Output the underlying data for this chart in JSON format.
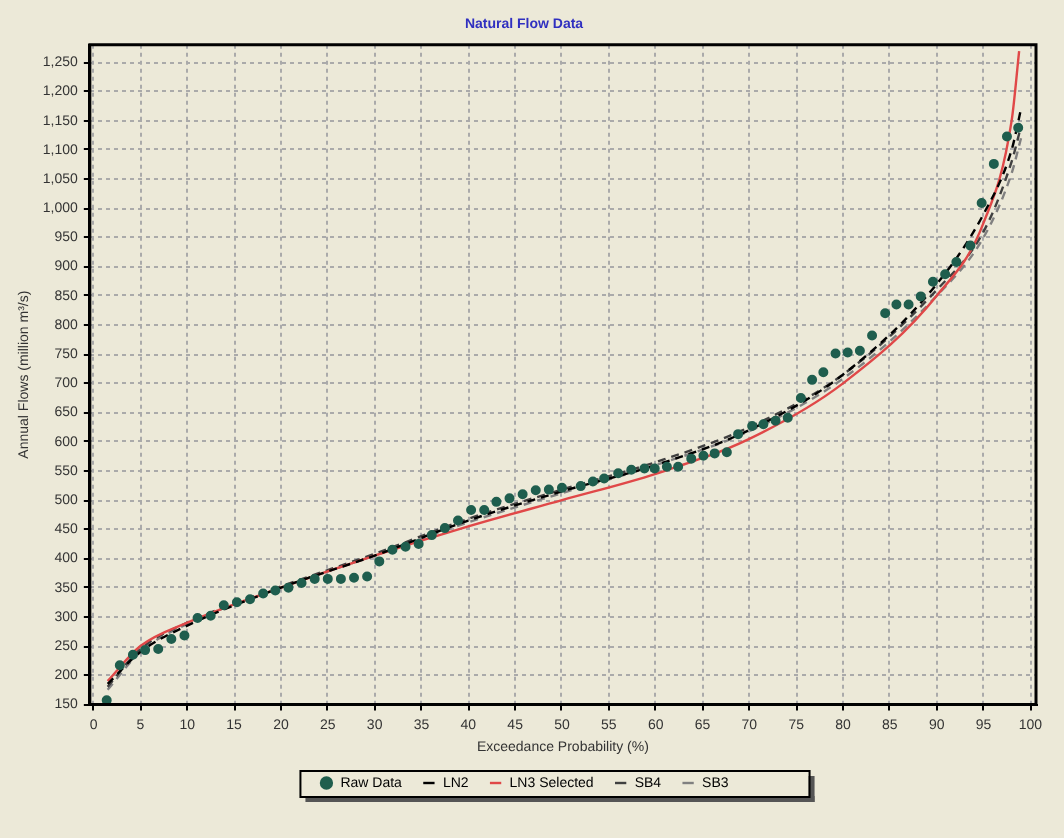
{
  "chart_data": {
    "type": "scatter",
    "title": "Natural Flow Data",
    "xlabel": "Exceedance Probability (%)",
    "ylabel": "Annual Flows (million m³/s)",
    "xlim": [
      -0.4,
      100.6
    ],
    "ylim": [
      150,
      1280
    ],
    "xticks": [
      0,
      5,
      10,
      15,
      20,
      25,
      30,
      35,
      40,
      45,
      50,
      55,
      60,
      65,
      70,
      75,
      80,
      85,
      90,
      95,
      100
    ],
    "yticks": [
      150,
      200,
      250,
      300,
      350,
      400,
      450,
      500,
      550,
      600,
      650,
      700,
      750,
      800,
      850,
      900,
      950,
      {
        "value": 1000,
        "label": "1,000"
      },
      {
        "value": 1050,
        "label": "1,050"
      },
      {
        "value": 1100,
        "label": "1,100"
      },
      {
        "value": 1150,
        "label": "1,150"
      },
      {
        "value": 1200,
        "label": "1,200"
      },
      {
        "value": 1250,
        "label": "1,250"
      }
    ],
    "grid": true,
    "legend": "bottom",
    "series": [
      {
        "name": "Raw Data",
        "marker": "circle",
        "color": "#1f5e4e",
        "x": [
          1.4,
          2.8,
          4.2,
          5.5,
          6.9,
          8.3,
          9.7,
          11.1,
          12.5,
          13.9,
          15.3,
          16.7,
          18.1,
          19.4,
          20.8,
          22.2,
          23.6,
          25,
          26.4,
          27.8,
          29.2,
          30.5,
          31.9,
          33.3,
          34.7,
          36.1,
          37.5,
          38.9,
          40.3,
          41.7,
          43,
          44.4,
          45.8,
          47.2,
          48.6,
          50,
          52,
          53.3,
          54.5,
          56,
          57.4,
          58.8,
          59.9,
          61.2,
          62.4,
          63.8,
          65.1,
          66.3,
          67.6,
          68.8,
          70.3,
          71.5,
          72.8,
          74.1,
          75.5,
          76.7,
          77.9,
          79.2,
          80.5,
          81.8,
          83.1,
          84.5,
          85.7,
          87,
          88.3,
          89.6,
          90.9,
          92.1,
          93.6,
          94.8,
          96.1,
          97.5,
          98.7
        ],
        "values": [
          157,
          217,
          235,
          243,
          245,
          262,
          268,
          298,
          302,
          320,
          325,
          330,
          340,
          345,
          350,
          358,
          365,
          365,
          365,
          367,
          369,
          395,
          415,
          420,
          425,
          440,
          452,
          465,
          483,
          483,
          497,
          503,
          510,
          517,
          518,
          521,
          524,
          532,
          537,
          546,
          552,
          554,
          554,
          557,
          557,
          571,
          576,
          580,
          582,
          613,
          627,
          630,
          636,
          641,
          675,
          706,
          719,
          751,
          753,
          756,
          782,
          820,
          835,
          835,
          849,
          874,
          887,
          908,
          936,
          1009,
          1076,
          1123,
          1138
        ]
      },
      {
        "name": "LN2",
        "type": "line",
        "line_style": "dashed",
        "color": "#000000",
        "x": [
          1.5,
          5,
          10,
          20,
          30,
          40,
          50,
          60,
          70,
          80,
          90,
          95,
          98,
          99
        ],
        "values": [
          185,
          240,
          285,
          350,
          405,
          465,
          515,
          560,
          620,
          715,
          870,
          990,
          1100,
          1170
        ]
      },
      {
        "name": "LN3 Selected",
        "type": "line",
        "line_style": "solid",
        "color": "#e04848",
        "x": [
          1.5,
          5,
          10,
          20,
          30,
          40,
          50,
          60,
          70,
          80,
          90,
          95,
          98,
          98.8
        ],
        "values": [
          190,
          250,
          290,
          350,
          405,
          455,
          500,
          545,
          605,
          700,
          850,
          975,
          1150,
          1269
        ]
      },
      {
        "name": "SB4",
        "type": "line",
        "line_style": "dashed",
        "color": "#404040",
        "x": [
          1.5,
          5,
          10,
          20,
          30,
          40,
          50,
          60,
          70,
          80,
          90,
          95,
          98,
          99
        ],
        "values": [
          180,
          245,
          290,
          352,
          408,
          468,
          518,
          565,
          625,
          715,
          860,
          960,
          1080,
          1140
        ]
      },
      {
        "name": "SB3",
        "type": "line",
        "line_style": "dashed",
        "color": "#808080",
        "x": [
          1.5,
          5,
          10,
          20,
          30,
          40,
          50,
          60,
          70,
          80,
          90,
          95,
          98,
          99
        ],
        "values": [
          175,
          240,
          288,
          350,
          405,
          462,
          512,
          560,
          618,
          708,
          850,
          950,
          1060,
          1120
        ]
      }
    ]
  }
}
